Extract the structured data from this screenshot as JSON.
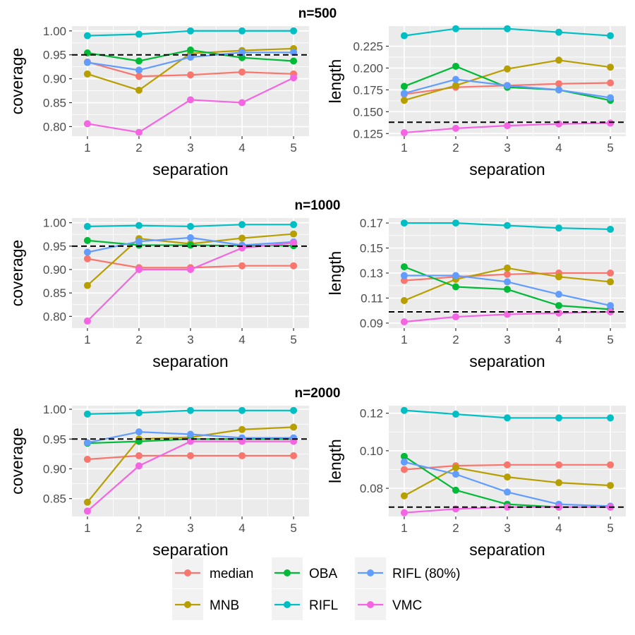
{
  "chart_data": {
    "type": "line",
    "x": [
      1,
      2,
      3,
      4,
      5
    ],
    "series_names": [
      "median",
      "MNB",
      "OBA",
      "RIFL",
      "RIFL (80%)",
      "VMC"
    ],
    "colors": {
      "median": "#F8766D",
      "MNB": "#B79F00",
      "OBA": "#00BA38",
      "RIFL": "#00BFC4",
      "RIFL (80%)": "#619CFF",
      "VMC": "#F564E3"
    },
    "panel_background": "#EBEBEB",
    "grid": true,
    "legend_position": "bottom",
    "rows": [
      {
        "strip": "n=500",
        "panels": [
          {
            "ylabel": "coverage",
            "xlabel": "separation",
            "ylim": [
              0.78,
              1.01
            ],
            "ticks": [
              "0.80",
              "0.85",
              "0.90",
              "0.95",
              "1.00"
            ],
            "hline": 0.95,
            "series": [
              {
                "name": "median",
                "values": [
                  0.935,
                  0.905,
                  0.908,
                  0.914,
                  0.91
                ]
              },
              {
                "name": "MNB",
                "values": [
                  0.91,
                  0.876,
                  0.953,
                  0.959,
                  0.963
                ]
              },
              {
                "name": "OBA",
                "values": [
                  0.954,
                  0.937,
                  0.96,
                  0.944,
                  0.937
                ]
              },
              {
                "name": "RIFL",
                "values": [
                  0.99,
                  0.993,
                  1.0,
                  1.0,
                  1.0
                ]
              },
              {
                "name": "RIFL (80%)",
                "values": [
                  0.934,
                  0.918,
                  0.945,
                  0.955,
                  0.955
                ]
              },
              {
                "name": "VMC",
                "values": [
                  0.806,
                  0.788,
                  0.856,
                  0.85,
                  0.902
                ]
              }
            ]
          },
          {
            "ylabel": "length",
            "xlabel": "separation",
            "ylim": [
              0.122,
              0.248
            ],
            "ticks": [
              "0.125",
              "0.150",
              "0.175",
              "0.200",
              "0.225"
            ],
            "hline": 0.138,
            "series": [
              {
                "name": "median",
                "values": [
                  0.17,
                  0.178,
                  0.18,
                  0.182,
                  0.183
                ]
              },
              {
                "name": "MNB",
                "values": [
                  0.163,
                  0.18,
                  0.199,
                  0.209,
                  0.201
                ]
              },
              {
                "name": "OBA",
                "values": [
                  0.179,
                  0.202,
                  0.178,
                  0.175,
                  0.163
                ]
              },
              {
                "name": "RIFL",
                "values": [
                  0.237,
                  0.245,
                  0.245,
                  0.241,
                  0.237
                ]
              },
              {
                "name": "RIFL (80%)",
                "values": [
                  0.171,
                  0.187,
                  0.18,
                  0.175,
                  0.166
                ]
              },
              {
                "name": "VMC",
                "values": [
                  0.126,
                  0.131,
                  0.134,
                  0.136,
                  0.137
                ]
              }
            ]
          }
        ]
      },
      {
        "strip": "n=1000",
        "panels": [
          {
            "ylabel": "coverage",
            "xlabel": "separation",
            "ylim": [
              0.775,
              1.01
            ],
            "ticks": [
              "0.80",
              "0.85",
              "0.90",
              "0.95",
              "1.00"
            ],
            "hline": 0.95,
            "series": [
              {
                "name": "median",
                "values": [
                  0.923,
                  0.904,
                  0.904,
                  0.908,
                  0.908
                ]
              },
              {
                "name": "MNB",
                "values": [
                  0.866,
                  0.966,
                  0.955,
                  0.967,
                  0.976
                ]
              },
              {
                "name": "OBA",
                "values": [
                  0.962,
                  0.952,
                  0.952,
                  0.951,
                  0.951
                ]
              },
              {
                "name": "RIFL",
                "values": [
                  0.992,
                  0.994,
                  0.992,
                  0.996,
                  0.996
                ]
              },
              {
                "name": "RIFL (80%)",
                "values": [
                  0.937,
                  0.96,
                  0.968,
                  0.952,
                  0.959
                ]
              },
              {
                "name": "VMC",
                "values": [
                  0.79,
                  0.9,
                  0.9,
                  0.946,
                  0.957
                ]
              }
            ]
          },
          {
            "ylabel": "length",
            "xlabel": "separation",
            "ylim": [
              0.086,
              0.174
            ],
            "ticks": [
              "0.09",
              "0.11",
              "0.13",
              "0.15",
              "0.17"
            ],
            "hline": 0.099,
            "series": [
              {
                "name": "median",
                "values": [
                  0.124,
                  0.127,
                  0.129,
                  0.13,
                  0.13
                ]
              },
              {
                "name": "MNB",
                "values": [
                  0.108,
                  0.125,
                  0.134,
                  0.127,
                  0.123
                ]
              },
              {
                "name": "OBA",
                "values": [
                  0.135,
                  0.119,
                  0.117,
                  0.104,
                  0.101
                ]
              },
              {
                "name": "RIFL",
                "values": [
                  0.17,
                  0.17,
                  0.168,
                  0.166,
                  0.165
                ]
              },
              {
                "name": "RIFL (80%)",
                "values": [
                  0.128,
                  0.128,
                  0.123,
                  0.113,
                  0.104
                ]
              },
              {
                "name": "VMC",
                "values": [
                  0.091,
                  0.095,
                  0.097,
                  0.098,
                  0.099
                ]
              }
            ]
          }
        ]
      },
      {
        "strip": "n=2000",
        "panels": [
          {
            "ylabel": "coverage",
            "xlabel": "separation",
            "ylim": [
              0.82,
              1.006
            ],
            "ticks": [
              "0.85",
              "0.90",
              "0.95",
              "1.00"
            ],
            "hline": 0.95,
            "series": [
              {
                "name": "median",
                "values": [
                  0.916,
                  0.922,
                  0.922,
                  0.922,
                  0.922
                ]
              },
              {
                "name": "MNB",
                "values": [
                  0.844,
                  0.95,
                  0.953,
                  0.966,
                  0.97
                ]
              },
              {
                "name": "OBA",
                "values": [
                  0.943,
                  0.946,
                  0.95,
                  0.95,
                  0.95
                ]
              },
              {
                "name": "RIFL",
                "values": [
                  0.992,
                  0.994,
                  0.998,
                  0.998,
                  0.998
                ]
              },
              {
                "name": "RIFL (80%)",
                "values": [
                  0.944,
                  0.962,
                  0.958,
                  0.952,
                  0.952
                ]
              },
              {
                "name": "VMC",
                "values": [
                  0.829,
                  0.905,
                  0.946,
                  0.946,
                  0.946
                ]
              }
            ]
          },
          {
            "ylabel": "length",
            "xlabel": "separation",
            "ylim": [
              0.065,
              0.124
            ],
            "ticks": [
              "0.08",
              "0.10",
              "0.12"
            ],
            "hline": 0.07,
            "series": [
              {
                "name": "median",
                "values": [
                  0.09,
                  0.092,
                  0.0925,
                  0.0925,
                  0.0925
                ]
              },
              {
                "name": "MNB",
                "values": [
                  0.076,
                  0.091,
                  0.086,
                  0.083,
                  0.0815
                ]
              },
              {
                "name": "OBA",
                "values": [
                  0.097,
                  0.079,
                  0.0715,
                  0.07,
                  0.07
                ]
              },
              {
                "name": "RIFL",
                "values": [
                  0.1215,
                  0.1195,
                  0.1175,
                  0.1175,
                  0.1175
                ]
              },
              {
                "name": "RIFL (80%)",
                "values": [
                  0.094,
                  0.0875,
                  0.078,
                  0.0715,
                  0.0705
                ]
              },
              {
                "name": "VMC",
                "values": [
                  0.067,
                  0.069,
                  0.07,
                  0.07,
                  0.07
                ]
              }
            ]
          }
        ]
      }
    ]
  }
}
